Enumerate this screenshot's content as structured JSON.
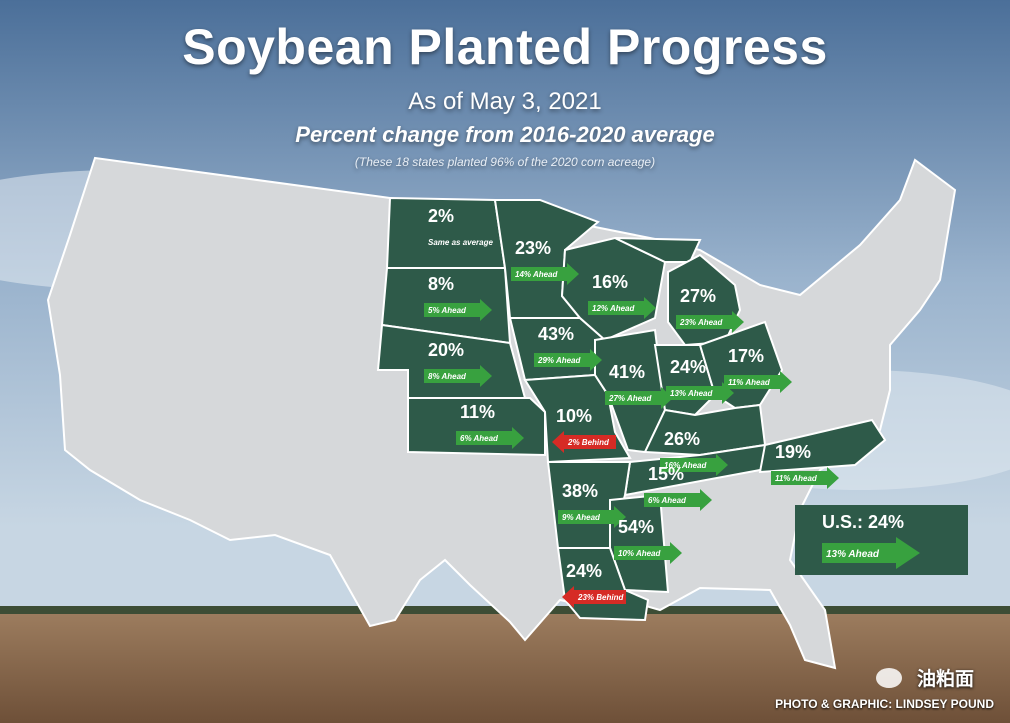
{
  "header": {
    "title": "Soybean Planted Progress",
    "date": "As of May 3, 2021",
    "subtitle": "Percent change from 2016-2020 average",
    "note": "(These 18 states planted 96% of the 2020 corn acreage)"
  },
  "credit": "PHOTO & GRAPHIC: LINDSEY POUND",
  "watermark": "油粕面",
  "colors": {
    "state_fill": "#2e5a49",
    "ahead": "#38a13f",
    "behind": "#d62b25",
    "other_states": "#d6d8da"
  },
  "states": [
    {
      "id": "ND",
      "pct": "2%",
      "change": "Same as average",
      "dir": "same"
    },
    {
      "id": "SD",
      "pct": "8%",
      "change": "5% Ahead",
      "dir": "ahead"
    },
    {
      "id": "NE",
      "pct": "20%",
      "change": "8% Ahead",
      "dir": "ahead"
    },
    {
      "id": "KS",
      "pct": "11%",
      "change": "6% Ahead",
      "dir": "ahead"
    },
    {
      "id": "MN",
      "pct": "23%",
      "change": "14% Ahead",
      "dir": "ahead"
    },
    {
      "id": "IA",
      "pct": "43%",
      "change": "29% Ahead",
      "dir": "ahead"
    },
    {
      "id": "MO",
      "pct": "10%",
      "change": "2% Behind",
      "dir": "behind"
    },
    {
      "id": "WI",
      "pct": "16%",
      "change": "12% Ahead",
      "dir": "ahead"
    },
    {
      "id": "IL",
      "pct": "41%",
      "change": "27% Ahead",
      "dir": "ahead"
    },
    {
      "id": "MI",
      "pct": "27%",
      "change": "23% Ahead",
      "dir": "ahead"
    },
    {
      "id": "IN",
      "pct": "24%",
      "change": "13% Ahead",
      "dir": "ahead"
    },
    {
      "id": "OH",
      "pct": "17%",
      "change": "11% Ahead",
      "dir": "ahead"
    },
    {
      "id": "KY",
      "pct": "26%",
      "change": "16% Ahead",
      "dir": "ahead"
    },
    {
      "id": "TN",
      "pct": "15%",
      "change": "6% Ahead",
      "dir": "ahead"
    },
    {
      "id": "NC",
      "pct": "19%",
      "change": "11% Ahead",
      "dir": "ahead"
    },
    {
      "id": "AR",
      "pct": "38%",
      "change": "9% Ahead",
      "dir": "ahead"
    },
    {
      "id": "MS",
      "pct": "54%",
      "change": "10% Ahead",
      "dir": "ahead"
    },
    {
      "id": "LA",
      "pct": "24%",
      "change": "23% Behind",
      "dir": "behind"
    }
  ],
  "us_total": {
    "label": "U.S.: 24%",
    "change": "13% Ahead",
    "dir": "ahead"
  }
}
